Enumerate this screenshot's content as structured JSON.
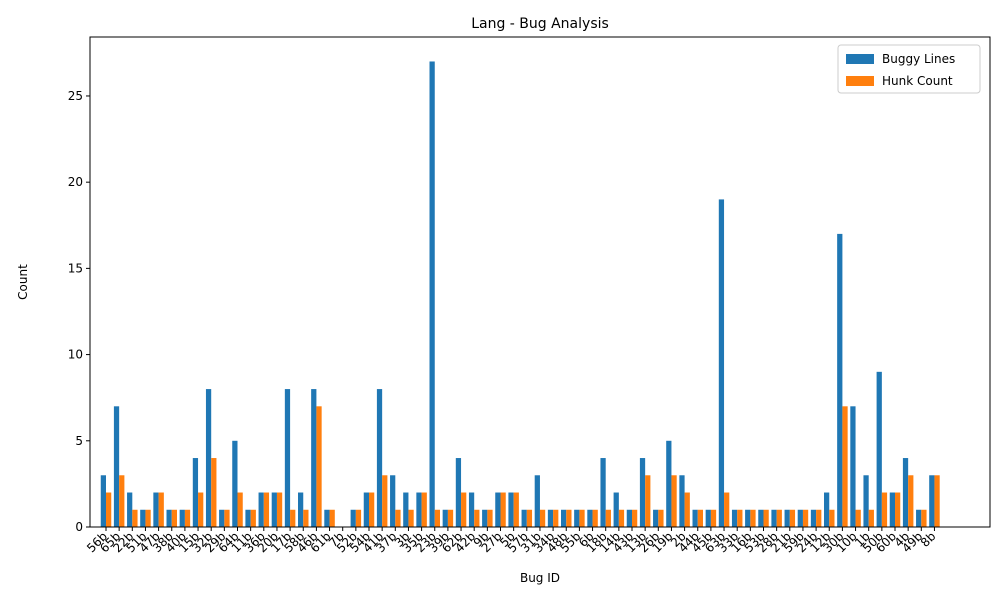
{
  "chart_data": {
    "type": "bar",
    "title": "Lang - Bug Analysis",
    "xlabel": "Bug ID",
    "ylabel": "Count",
    "categories": [
      "56b",
      "65b",
      "22b",
      "51b",
      "47b",
      "38b",
      "40b",
      "15b",
      "32b",
      "29b",
      "64b",
      "11b",
      "36b",
      "20b",
      "17b",
      "58b",
      "46b",
      "61b",
      "7b",
      "52b",
      "54b",
      "41b",
      "37b",
      "3b",
      "35b",
      "23b",
      "39b",
      "62b",
      "42b",
      "9b",
      "27b",
      "5b",
      "57b",
      "31b",
      "34b",
      "48b",
      "55b",
      "6b",
      "18b",
      "14b",
      "43b",
      "13b",
      "26b",
      "19b",
      "2b",
      "44b",
      "45b",
      "63b",
      "33b",
      "16b",
      "53b",
      "28b",
      "21b",
      "59b",
      "24b",
      "12b",
      "30b",
      "10b",
      "1b",
      "50b",
      "60b",
      "4b",
      "49b",
      "8b"
    ],
    "series": [
      {
        "name": "Buggy Lines",
        "color": "#1f77b4",
        "values": [
          3,
          7,
          2,
          1,
          2,
          1,
          1,
          4,
          8,
          1,
          5,
          1,
          2,
          2,
          8,
          2,
          8,
          1,
          0,
          1,
          2,
          8,
          3,
          2,
          2,
          27,
          1,
          4,
          2,
          1,
          2,
          2,
          1,
          3,
          1,
          1,
          1,
          1,
          4,
          2,
          1,
          4,
          1,
          5,
          3,
          1,
          1,
          19,
          1,
          1,
          1,
          1,
          1,
          1,
          1,
          2,
          17,
          7,
          3,
          9,
          2,
          4,
          1,
          3
        ]
      },
      {
        "name": "Hunk Count",
        "color": "#ff7f0e",
        "values": [
          2,
          3,
          1,
          1,
          2,
          1,
          1,
          2,
          4,
          1,
          2,
          1,
          2,
          2,
          1,
          1,
          7,
          1,
          0,
          1,
          2,
          3,
          1,
          1,
          2,
          1,
          1,
          2,
          1,
          1,
          2,
          2,
          1,
          1,
          1,
          1,
          1,
          1,
          1,
          1,
          1,
          3,
          1,
          3,
          2,
          1,
          1,
          2,
          1,
          1,
          1,
          1,
          1,
          1,
          1,
          1,
          7,
          1,
          1,
          2,
          2,
          3,
          1,
          3
        ]
      }
    ],
    "ylim": [
      0,
      28.42
    ],
    "yticks": [
      0,
      5,
      10,
      15,
      20,
      25
    ],
    "legend": "upper right"
  }
}
